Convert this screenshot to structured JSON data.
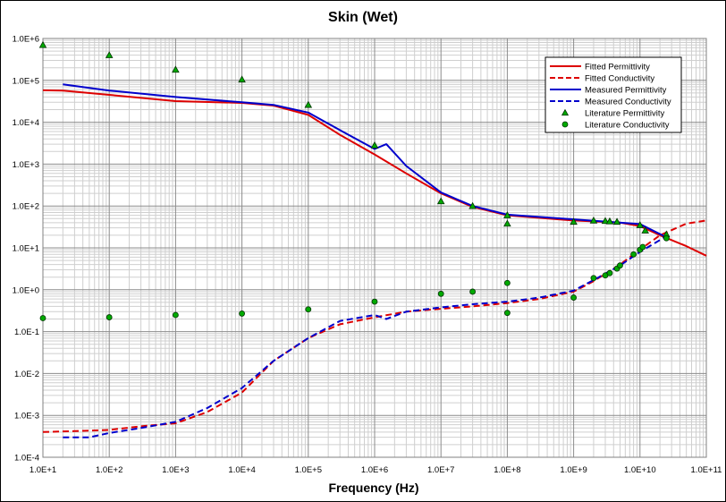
{
  "chart_data": {
    "type": "line",
    "title": "Skin (Wet)",
    "xlabel": "Frequency (Hz)",
    "ylabel": "",
    "x_scale": "log",
    "y_scale": "log",
    "xlim": [
      10,
      100000000000
    ],
    "ylim": [
      0.0001,
      1000000
    ],
    "grid": true,
    "legend_position": "top-right",
    "x_tick_labels": [
      "1.0E+1",
      "1.0E+2",
      "1.0E+3",
      "1.0E+4",
      "1.0E+5",
      "1.0E+6",
      "1.0E+7",
      "1.0E+8",
      "1.0E+9",
      "1.0E+10",
      "1.0E+11"
    ],
    "y_tick_labels": [
      "1.0E-4",
      "1.0E-3",
      "1.0E-2",
      "1.0E-1",
      "1.0E+0",
      "1.0E+1",
      "1.0E+2",
      "1.0E+3",
      "1.0E+4",
      "1.0E+5",
      "1.0E+6"
    ],
    "series": [
      {
        "name": "Fitted Permittivity",
        "style": "line",
        "color": "#dd0000",
        "dash": false,
        "x": [
          10,
          20,
          100,
          1000,
          10000,
          30000,
          100000,
          300000,
          1000000,
          3000000,
          10000000,
          30000000,
          100000000,
          1000000000,
          5000000000,
          10000000000,
          20000000000,
          50000000000,
          100000000000
        ],
        "y": [
          58000,
          57000,
          45000,
          32000,
          29000,
          25000,
          15000,
          5000,
          1700,
          600,
          200,
          95,
          60,
          45,
          40,
          33,
          20,
          11,
          6.5
        ]
      },
      {
        "name": "Fitted Conductivity",
        "style": "line",
        "color": "#dd0000",
        "dash": true,
        "x": [
          10,
          30,
          100,
          300,
          1000,
          3000,
          10000,
          30000,
          100000,
          300000,
          1000000,
          3000000,
          10000000,
          30000000,
          100000000,
          300000000,
          1000000000,
          2000000000,
          5000000000,
          10000000000,
          20000000000,
          50000000000,
          100000000000
        ],
        "y": [
          0.0004,
          0.00042,
          0.00045,
          0.00055,
          0.00065,
          0.0012,
          0.0035,
          0.02,
          0.07,
          0.15,
          0.22,
          0.3,
          0.35,
          0.4,
          0.48,
          0.6,
          0.9,
          1.6,
          4,
          9,
          20,
          38,
          45
        ]
      },
      {
        "name": "Measured Permittivity",
        "style": "line",
        "color": "#0000cc",
        "dash": false,
        "x": [
          20,
          100,
          1000,
          10000,
          30000,
          100000,
          300000,
          1000000,
          1500000,
          3000000,
          10000000,
          30000000,
          100000000,
          1000000000,
          10000000000,
          25000000000
        ],
        "y": [
          80000,
          57000,
          40000,
          30000,
          26000,
          17000,
          6500,
          2300,
          3000,
          900,
          210,
          100,
          62,
          48,
          37,
          18
        ]
      },
      {
        "name": "Measured Conductivity",
        "style": "line",
        "color": "#0000cc",
        "dash": true,
        "x": [
          20,
          50,
          100,
          300,
          1000,
          3000,
          10000,
          30000,
          100000,
          300000,
          1000000,
          1500000,
          3000000,
          10000000,
          30000000,
          100000000,
          300000000,
          1000000000,
          2000000000,
          5000000000,
          10000000000,
          25000000000
        ],
        "y": [
          0.0003,
          0.0003,
          0.00038,
          0.0005,
          0.0007,
          0.0015,
          0.0045,
          0.02,
          0.07,
          0.18,
          0.25,
          0.2,
          0.3,
          0.38,
          0.45,
          0.52,
          0.65,
          0.95,
          1.7,
          3.8,
          8,
          19
        ]
      },
      {
        "name": "Literature Permittivity",
        "style": "marker",
        "marker": "triangle",
        "color": "#00aa00",
        "x": [
          10,
          100,
          1000,
          10000,
          100000,
          1000000,
          10000000,
          30000000,
          100000000,
          100000000,
          1000000000,
          2000000000,
          3000000000,
          3500000000,
          4500000000,
          10000000000,
          12000000000,
          25000000000
        ],
        "y": [
          700000,
          400000,
          180000,
          105000,
          26000,
          2800,
          130,
          100,
          60,
          38,
          42,
          45,
          44,
          43,
          42,
          35,
          26,
          21
        ]
      },
      {
        "name": "Literature Conductivity",
        "style": "marker",
        "marker": "circle",
        "color": "#00aa00",
        "x": [
          10,
          100,
          1000,
          10000,
          100000,
          1000000,
          10000000,
          30000000,
          100000000,
          100000000,
          1000000000,
          2000000000,
          3000000000,
          3500000000,
          4500000000,
          5000000000,
          8000000000,
          10000000000,
          11000000000,
          25000000000
        ],
        "y": [
          0.21,
          0.22,
          0.25,
          0.27,
          0.34,
          0.52,
          0.8,
          0.9,
          1.45,
          0.28,
          0.65,
          1.9,
          2.2,
          2.5,
          3.2,
          3.8,
          7,
          9,
          10.5,
          17
        ]
      }
    ]
  }
}
